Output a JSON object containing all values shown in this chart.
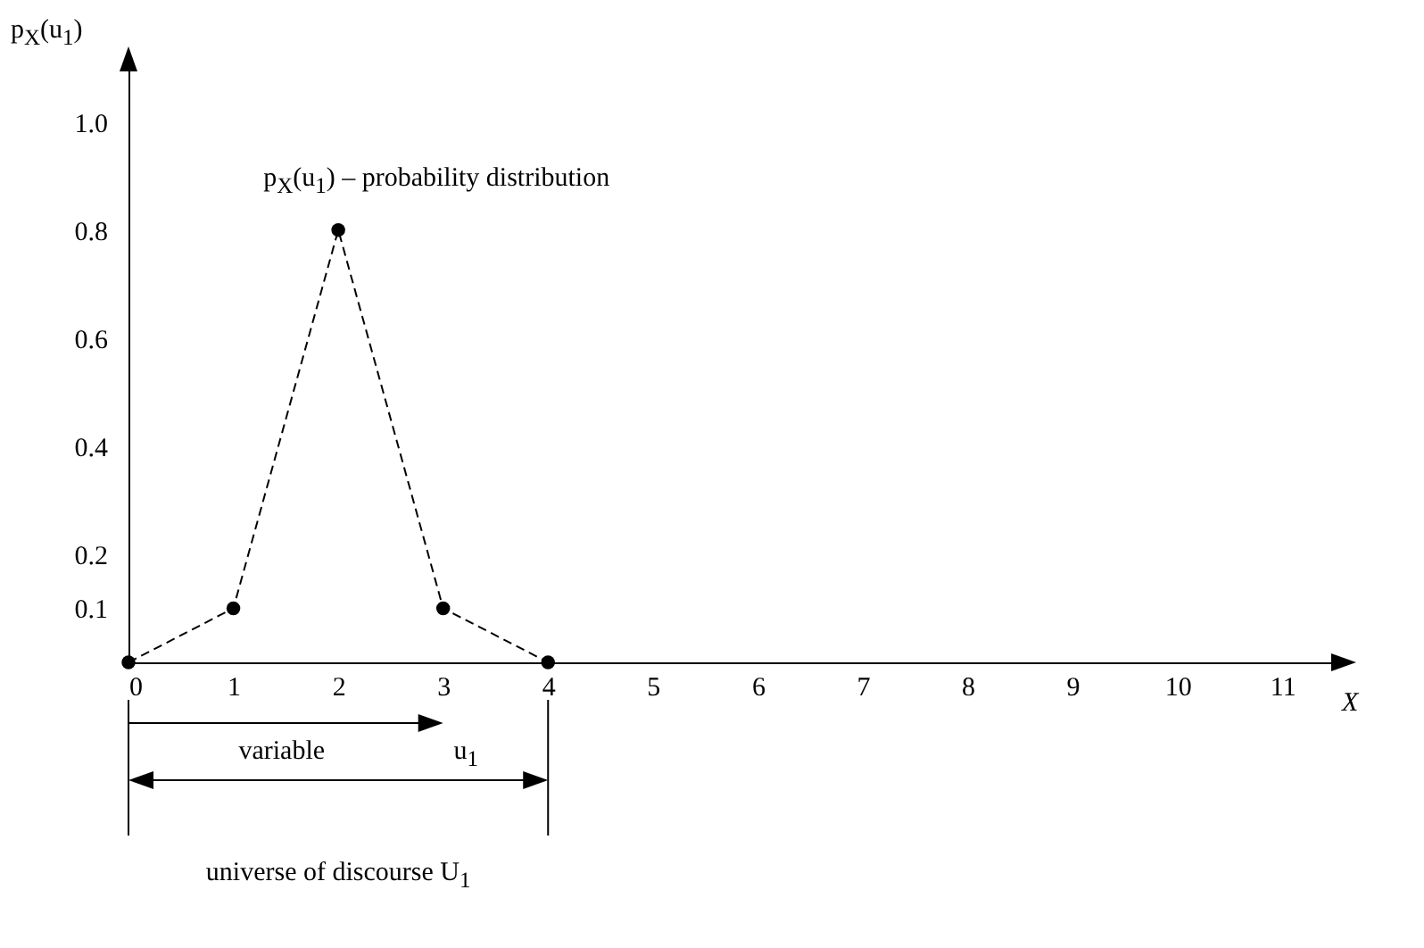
{
  "chart_data": {
    "type": "line",
    "ylabel": "p$_{X}$(u$_{1}$)",
    "xlabel": "X",
    "x": [
      0,
      1,
      2,
      3,
      4
    ],
    "series": [
      {
        "color": "#000000",
        "values": [
          0,
          0.1,
          0.8,
          0.1,
          0
        ]
      }
    ],
    "marker": "circle",
    "line_style": "dashed",
    "xlim": [
      0,
      11.5
    ],
    "xticks": [
      0,
      1,
      2,
      3,
      4,
      5,
      6,
      7,
      8,
      9,
      10,
      11
    ],
    "ylim": [
      0,
      1.1
    ],
    "yticks": [
      0.1,
      0.2,
      0.4,
      0.6,
      0.8,
      {
        "value": 1,
        "label": "1.0"
      }
    ],
    "annotations": [
      {
        "text": "p$_{X}$(u$_{1}$) – probability distribution",
        "x": 2,
        "y": 0.8
      },
      "variable",
      "u$_{1}$",
      "universe of discourse U$_{1}$"
    ]
  }
}
